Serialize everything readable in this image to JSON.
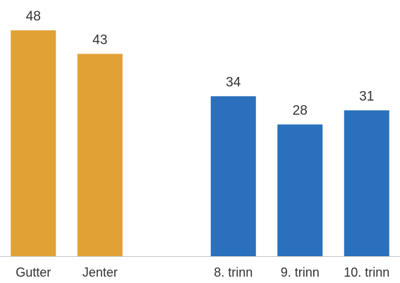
{
  "chart_data": {
    "type": "bar",
    "title": "",
    "xlabel": "",
    "ylabel": "",
    "ylim": [
      0,
      48
    ],
    "grid": false,
    "legend": "none",
    "categories": [
      "Gutter",
      "Jenter",
      "",
      "8. trinn",
      "9. trinn",
      "10. trinn"
    ],
    "values": [
      48,
      43,
      null,
      34,
      28,
      31
    ],
    "data_labels": [
      "48",
      "43",
      "",
      "34",
      "28",
      "31"
    ],
    "bar_colors": [
      "#E0A234",
      "#E0A234",
      null,
      "#2A70BC",
      "#2A70BC",
      "#2A70BC"
    ]
  }
}
